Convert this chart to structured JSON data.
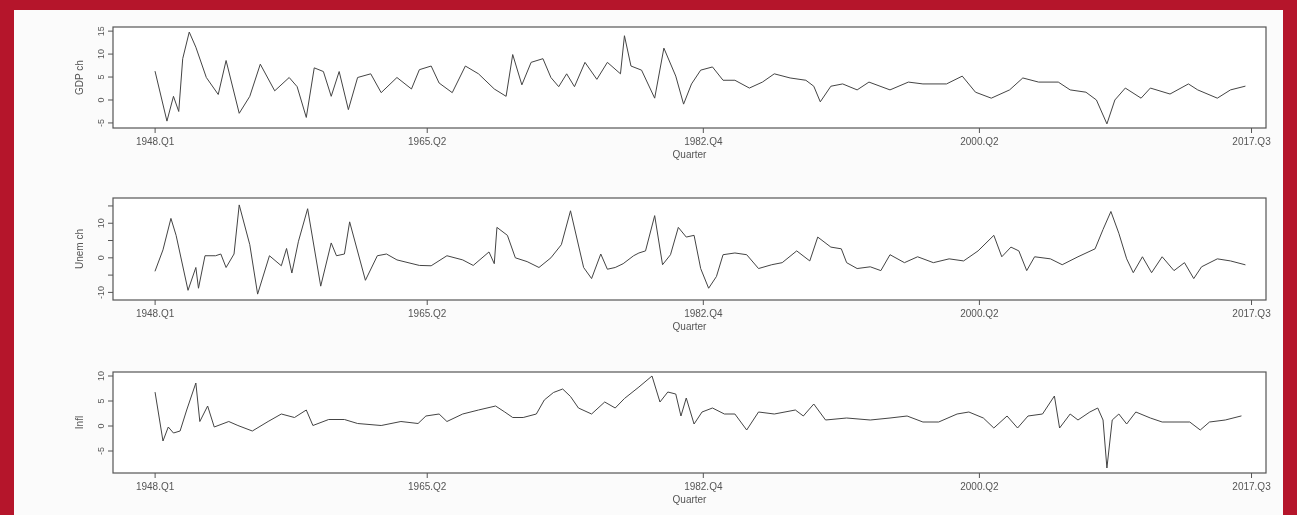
{
  "chart_data": [
    {
      "type": "line",
      "xlabel": "Quarter",
      "ylabel": "GDP ch",
      "xlim": [
        "1945-05",
        "2018-06"
      ],
      "ylim": [
        -6.1,
        15.9
      ],
      "xticks": [
        {
          "value": "1948-01",
          "label": "1948.Q1"
        },
        {
          "value": "1965-04",
          "label": "1965.Q2"
        },
        {
          "value": "1982-10",
          "label": "1982.Q4"
        },
        {
          "value": "2000-04",
          "label": "2000.Q2"
        },
        {
          "value": "2017-07",
          "label": "2017.Q3"
        }
      ],
      "yticks": [
        -5,
        0,
        5,
        10,
        15
      ],
      "x": [
        "1948-01",
        "1948-10",
        "1949-03",
        "1949-07",
        "1949-10",
        "1950-03",
        "1950-08",
        "1951-04",
        "1952-01",
        "1952-07",
        "1953-05",
        "1954-01",
        "1954-09",
        "1955-08",
        "1956-07",
        "1957-01",
        "1957-08",
        "1958-02",
        "1958-09",
        "1959-03",
        "1959-09",
        "1960-04",
        "1960-11",
        "1961-09",
        "1962-05",
        "1963-05",
        "1964-04",
        "1964-10",
        "1965-07",
        "1966-01",
        "1966-11",
        "1967-09",
        "1968-07",
        "1969-07",
        "1970-04",
        "1970-09",
        "1971-04",
        "1971-11",
        "1972-08",
        "1973-02",
        "1973-08",
        "1974-02",
        "1974-08",
        "1975-04",
        "1976-01",
        "1976-09",
        "1977-07",
        "1977-10",
        "1978-03",
        "1978-11",
        "1979-09",
        "1980-04",
        "1981-01",
        "1981-07",
        "1982-01",
        "1982-08",
        "1983-05",
        "1984-01",
        "1984-10",
        "1985-09",
        "1986-07",
        "1987-04",
        "1988-04",
        "1989-04",
        "1989-10",
        "1990-03",
        "1990-11",
        "1991-08",
        "1992-07",
        "1993-04",
        "1994-08",
        "1995-10",
        "1996-09",
        "1998-03",
        "1999-03",
        "2000-01",
        "2001-01",
        "2002-03",
        "2003-01",
        "2004-01",
        "2005-04",
        "2006-01",
        "2007-01",
        "2007-09",
        "2008-05",
        "2008-11",
        "2009-07",
        "2010-07",
        "2011-02",
        "2012-05",
        "2013-07",
        "2014-02",
        "2015-05",
        "2016-03",
        "2017-02"
      ],
      "series": [
        {
          "color": "#444444",
          "values": [
            6.2,
            -4.6,
            0.8,
            -2.5,
            9.0,
            14.8,
            11.5,
            4.9,
            1.2,
            8.6,
            -2.9,
            0.8,
            7.8,
            2.0,
            4.9,
            2.9,
            -3.8,
            7.0,
            6.2,
            0.8,
            6.2,
            -2.1,
            4.9,
            5.7,
            1.6,
            4.9,
            2.4,
            6.6,
            7.4,
            3.7,
            1.6,
            7.4,
            5.7,
            2.4,
            0.8,
            9.9,
            3.3,
            8.2,
            9.0,
            4.9,
            2.9,
            5.7,
            2.9,
            8.2,
            4.5,
            8.2,
            5.7,
            14.0,
            7.4,
            6.5,
            0.4,
            11.3,
            5.2,
            -0.9,
            3.5,
            6.5,
            7.2,
            4.3,
            4.3,
            2.6,
            3.9,
            5.7,
            4.8,
            4.3,
            3.0,
            -0.4,
            3.0,
            3.5,
            2.2,
            3.9,
            2.2,
            3.9,
            3.5,
            3.5,
            5.2,
            1.7,
            0.4,
            2.2,
            4.8,
            3.9,
            3.9,
            2.2,
            1.7,
            0.0,
            -5.2,
            0.0,
            2.6,
            0.4,
            2.6,
            1.3,
            3.5,
            2.2,
            0.4,
            2.2,
            3.0
          ]
        }
      ]
    },
    {
      "type": "line",
      "xlabel": "Quarter",
      "ylabel": "Unem ch",
      "xlim": [
        "1945-05",
        "2018-06"
      ],
      "ylim": [
        -12.2,
        17.3
      ],
      "xticks": [
        {
          "value": "1948-01",
          "label": "1948.Q1"
        },
        {
          "value": "1965-04",
          "label": "1965.Q2"
        },
        {
          "value": "1982-10",
          "label": "1982.Q4"
        },
        {
          "value": "2000-04",
          "label": "2000.Q2"
        },
        {
          "value": "2017-07",
          "label": "2017.Q3"
        }
      ],
      "yticks": [
        -10,
        {
          "value": -5,
          "label": null
        },
        0,
        {
          "value": 5,
          "label": null
        },
        10,
        {
          "value": 15,
          "label": null
        }
      ],
      "x": [
        "1948-01",
        "1948-07",
        "1949-01",
        "1949-05",
        "1950-02",
        "1950-08",
        "1950-10",
        "1951-03",
        "1951-11",
        "1952-03",
        "1952-07",
        "1953-01",
        "1953-05",
        "1954-01",
        "1954-07",
        "1955-04",
        "1956-01",
        "1956-05",
        "1956-09",
        "1957-02",
        "1957-09",
        "1958-07",
        "1959-03",
        "1959-07",
        "1960-01",
        "1960-05",
        "1961-05",
        "1962-02",
        "1962-09",
        "1963-05",
        "1964-10",
        "1965-07",
        "1966-07",
        "1967-07",
        "1968-03",
        "1969-03",
        "1969-07",
        "1969-09",
        "1970-05",
        "1970-11",
        "1971-08",
        "1972-05",
        "1973-02",
        "1973-10",
        "1974-05",
        "1975-03",
        "1975-09",
        "1976-04",
        "1976-09",
        "1977-03",
        "1977-09",
        "1978-05",
        "1978-09",
        "1979-02",
        "1979-09",
        "1980-03",
        "1980-09",
        "1981-03",
        "1981-09",
        "1982-03",
        "1982-08",
        "1983-02",
        "1983-08",
        "1984-01",
        "1984-10",
        "1985-07",
        "1986-04",
        "1987-02",
        "1987-10",
        "1988-09",
        "1989-07",
        "1990-01",
        "1990-11",
        "1991-07",
        "1991-11",
        "1992-07",
        "1993-05",
        "1994-01",
        "1994-08",
        "1995-07",
        "1996-05",
        "1997-05",
        "1998-05",
        "1999-04",
        "2000-03",
        "2001-03",
        "2001-09",
        "2002-04",
        "2002-10",
        "2003-04",
        "2003-10",
        "2004-10",
        "2005-07",
        "2006-07",
        "2007-08",
        "2008-02",
        "2008-08",
        "2009-02",
        "2009-08",
        "2010-01",
        "2010-08",
        "2011-03",
        "2011-11",
        "2012-08",
        "2013-04",
        "2013-11",
        "2014-05",
        "2015-05",
        "2016-03",
        "2017-02"
      ],
      "series": [
        {
          "color": "#444444",
          "values": [
            -3.8,
            2.3,
            11.4,
            6.5,
            -9.4,
            -2.8,
            -8.8,
            0.6,
            0.6,
            1.1,
            -2.8,
            1.1,
            15.3,
            3.8,
            -10.5,
            0.6,
            -2.3,
            2.7,
            -4.4,
            4.8,
            14.2,
            -8.2,
            4.3,
            0.6,
            1.1,
            10.4,
            -6.5,
            0.6,
            1.1,
            -0.6,
            -2.2,
            -2.3,
            0.6,
            -0.6,
            -2.2,
            1.7,
            -1.7,
            8.8,
            6.5,
            0.0,
            -1.1,
            -2.8,
            0.0,
            3.8,
            13.6,
            -2.8,
            -6.0,
            1.1,
            -3.3,
            -2.8,
            -1.7,
            0.6,
            1.4,
            2.0,
            12.2,
            -2.0,
            0.9,
            8.8,
            6.0,
            6.5,
            -3.1,
            -8.8,
            -5.4,
            0.9,
            1.4,
            0.9,
            -3.1,
            -2.0,
            -1.4,
            2.0,
            -0.9,
            6.0,
            3.1,
            2.6,
            -1.4,
            -3.1,
            -2.6,
            -3.7,
            0.9,
            -1.4,
            0.3,
            -1.4,
            -0.3,
            -0.9,
            2.0,
            6.5,
            0.3,
            3.1,
            2.0,
            -3.7,
            0.3,
            -0.3,
            -2.0,
            0.3,
            2.6,
            8.2,
            13.4,
            7.1,
            -0.3,
            -4.3,
            0.3,
            -4.3,
            0.3,
            -3.7,
            -1.4,
            -6.0,
            -2.6,
            -0.3,
            -0.9,
            -2.0
          ]
        }
      ]
    },
    {
      "type": "line",
      "xlabel": "Quarter",
      "ylabel": "Infl",
      "xlim": [
        "1945-05",
        "2018-06"
      ],
      "ylim": [
        -9.4,
        10.8
      ],
      "xticks": [
        {
          "value": "1948-01",
          "label": "1948.Q1"
        },
        {
          "value": "1965-04",
          "label": "1965.Q2"
        },
        {
          "value": "1982-10",
          "label": "1982.Q4"
        },
        {
          "value": "2000-04",
          "label": "2000.Q2"
        },
        {
          "value": "2017-07",
          "label": "2017.Q3"
        }
      ],
      "yticks": [
        -5,
        0,
        5,
        10
      ],
      "x": [
        "1948-01",
        "1948-07",
        "1948-11",
        "1949-03",
        "1949-08",
        "1950-01",
        "1950-08",
        "1950-11",
        "1951-05",
        "1951-10",
        "1952-09",
        "1953-04",
        "1954-03",
        "1955-03",
        "1956-01",
        "1956-11",
        "1957-08",
        "1958-01",
        "1959-01",
        "1960-01",
        "1960-11",
        "1962-05",
        "1963-08",
        "1964-09",
        "1965-03",
        "1966-01",
        "1966-07",
        "1967-07",
        "1968-07",
        "1969-08",
        "1970-03",
        "1970-09",
        "1971-05",
        "1972-03",
        "1972-09",
        "1973-04",
        "1973-11",
        "1974-05",
        "1974-11",
        "1975-09",
        "1976-07",
        "1977-03",
        "1977-10",
        "1978-09",
        "1979-07",
        "1980-01",
        "1980-07",
        "1981-01",
        "1981-05",
        "1981-09",
        "1982-03",
        "1982-09",
        "1983-05",
        "1984-02",
        "1984-10",
        "1985-07",
        "1986-04",
        "1987-04",
        "1988-08",
        "1989-02",
        "1989-10",
        "1990-07",
        "1991-11",
        "1993-05",
        "1994-08",
        "1995-09",
        "1996-09",
        "1997-09",
        "1998-11",
        "1999-08",
        "2000-07",
        "2001-03",
        "2002-01",
        "2002-09",
        "2003-05",
        "2004-04",
        "2005-01",
        "2005-05",
        "2006-01",
        "2006-07",
        "2007-04",
        "2007-10",
        "2008-02",
        "2008-05",
        "2008-09",
        "2009-02",
        "2009-08",
        "2010-03",
        "2011-02",
        "2011-11",
        "2012-08",
        "2013-08",
        "2014-04",
        "2014-11",
        "2015-11",
        "2016-11"
      ],
      "series": [
        {
          "color": "#444444",
          "values": [
            6.7,
            -3.0,
            -0.2,
            -1.4,
            -1.0,
            3.2,
            8.6,
            0.9,
            4.0,
            -0.2,
            0.9,
            0.1,
            -1.0,
            0.9,
            2.4,
            1.7,
            3.2,
            0.1,
            1.3,
            1.3,
            0.5,
            0.1,
            0.9,
            0.5,
            2.0,
            2.4,
            0.9,
            2.4,
            3.2,
            4.0,
            2.8,
            1.7,
            1.7,
            2.4,
            5.2,
            6.7,
            7.4,
            5.9,
            3.6,
            2.4,
            4.8,
            3.6,
            5.5,
            7.8,
            10.0,
            4.8,
            6.8,
            6.4,
            2.0,
            5.6,
            0.4,
            2.8,
            3.6,
            2.4,
            2.4,
            -0.8,
            2.8,
            2.4,
            3.2,
            2.0,
            4.4,
            1.2,
            1.6,
            1.2,
            1.6,
            2.0,
            0.8,
            0.8,
            2.4,
            2.8,
            1.6,
            -0.4,
            2.0,
            -0.4,
            2.0,
            2.4,
            6.0,
            -0.4,
            2.4,
            1.2,
            2.8,
            3.6,
            1.2,
            -8.4,
            1.2,
            2.4,
            0.4,
            2.8,
            1.6,
            0.8,
            0.8,
            0.8,
            -0.8,
            0.8,
            1.2,
            2.0
          ]
        }
      ]
    }
  ]
}
